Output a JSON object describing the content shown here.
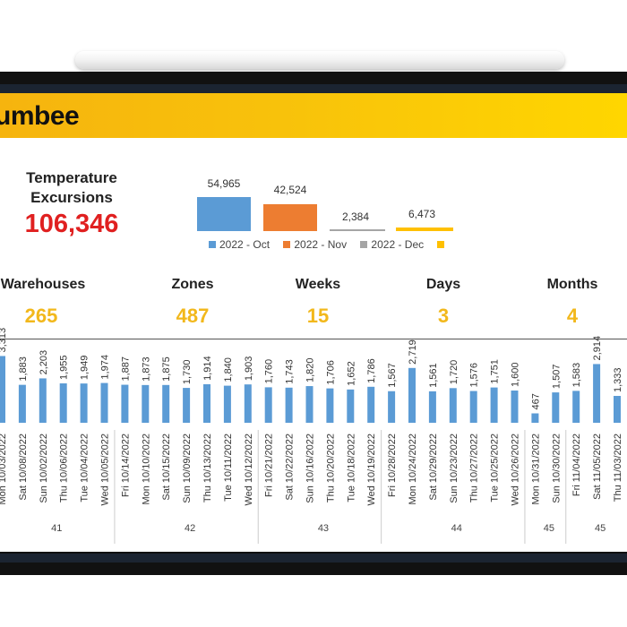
{
  "header": {
    "brand": "umbee"
  },
  "kpi": {
    "label": "Temperature Excursions",
    "value": "106,346"
  },
  "months": [
    {
      "value": "54,965",
      "label": "2022 - Oct",
      "color": "#5b9bd5"
    },
    {
      "value": "42,524",
      "label": "2022 - Nov",
      "color": "#ed7d31"
    },
    {
      "value": "2,384",
      "label": "2022 - Dec",
      "color": "#a5a5a5"
    },
    {
      "value": "6,473",
      "label": "",
      "color": "#ffc000"
    }
  ],
  "stats": [
    {
      "label": "Warehouses",
      "value": "265"
    },
    {
      "label": "Zones",
      "value": "487"
    },
    {
      "label": "Weeks",
      "value": "15"
    },
    {
      "label": "Days",
      "value": "3"
    },
    {
      "label": "Months",
      "value": "4"
    }
  ],
  "chart_data": {
    "type": "bar",
    "bar_color": "#5b9bd5",
    "ylim": [
      0,
      3400
    ],
    "categories": [
      "Mon 10/03/2022",
      "Sat 10/08/2022",
      "Sun 10/02/2022",
      "Thu 10/06/2022",
      "Tue 10/04/2022",
      "Wed 10/05/2022",
      "Fri 10/14/2022",
      "Mon 10/10/2022",
      "Sat 10/15/2022",
      "Sun 10/09/2022",
      "Thu 10/13/2022",
      "Tue 10/11/2022",
      "Wed 10/12/2022",
      "Fri 10/21/2022",
      "Sat 10/22/2022",
      "Sun 10/16/2022",
      "Thu 10/20/2022",
      "Tue 10/18/2022",
      "Wed 10/19/2022",
      "Fri 10/28/2022",
      "Mon 10/24/2022",
      "Sat 10/29/2022",
      "Sun 10/23/2022",
      "Thu 10/27/2022",
      "Tue 10/25/2022",
      "Wed 10/26/2022",
      "Mon 10/31/2022",
      "Sun 10/30/2022",
      "Fri 11/04/2022",
      "Sat 11/05/2022",
      "Thu 11/03/2022"
    ],
    "values": [
      3313,
      1883,
      2203,
      1955,
      1949,
      1974,
      1887,
      1873,
      1875,
      1730,
      1914,
      1840,
      1903,
      1760,
      1743,
      1820,
      1706,
      1652,
      1786,
      1567,
      2719,
      1561,
      1720,
      1576,
      1751,
      1600,
      467,
      1507,
      1583,
      2914,
      1333
    ],
    "value_labels": [
      "3,313",
      "1,883",
      "2,203",
      "1,955",
      "1,949",
      "1,974",
      "1,887",
      "1,873",
      "1,875",
      "1,730",
      "1,914",
      "1,840",
      "1,903",
      "1,760",
      "1,743",
      "1,820",
      "1,706",
      "1,652",
      "1,786",
      "1,567",
      "2,719",
      "1,561",
      "1,720",
      "1,576",
      "1,751",
      "1,600",
      "467",
      "1,507",
      "1,583",
      "2,914",
      "1,333"
    ],
    "week_groups": [
      {
        "week": "41",
        "count": 6
      },
      {
        "week": "42",
        "count": 7
      },
      {
        "week": "43",
        "count": 6
      },
      {
        "week": "44",
        "count": 7
      },
      {
        "week": "45",
        "count": 2
      },
      {
        "week": "45",
        "count": 3
      }
    ]
  }
}
